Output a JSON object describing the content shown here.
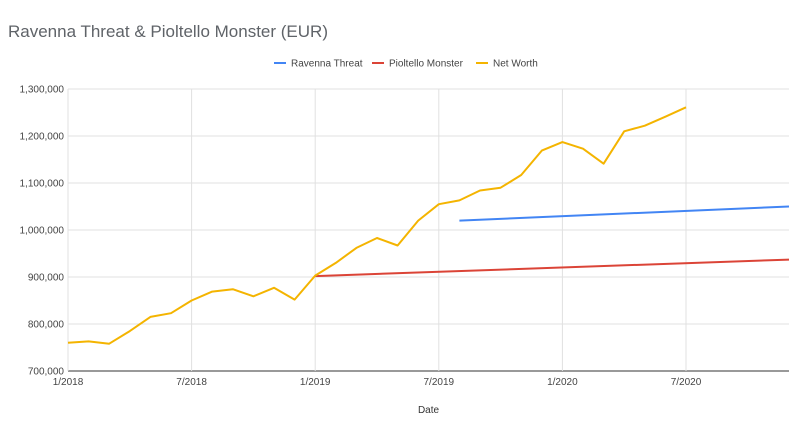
{
  "chart_data": {
    "type": "line",
    "title": "Ravenna Threat & Pioltello Monster (EUR)",
    "xlabel": "Date",
    "ylabel": "",
    "ylim": [
      700000,
      1300000
    ],
    "y_ticks": [
      "700,000",
      "800,000",
      "900,000",
      "1,000,000",
      "1,100,000",
      "1,200,000",
      "1,300,000"
    ],
    "x_range": [
      "2018-01",
      "2020-12"
    ],
    "x_ticks": [
      "1/2018",
      "7/2018",
      "1/2019",
      "7/2019",
      "1/2020",
      "7/2020"
    ],
    "grid": true,
    "legend_position": "top-center",
    "series": [
      {
        "name": "Ravenna Threat",
        "color": "#4285f4",
        "x": [
          "2019-08",
          "2020-12"
        ],
        "values": [
          1020000,
          1050000
        ]
      },
      {
        "name": "Pioltello Monster",
        "color": "#db4437",
        "x": [
          "2019-01",
          "2020-12"
        ],
        "values": [
          902000,
          937000
        ]
      },
      {
        "name": "Net Worth",
        "color": "#f4b400",
        "x": [
          "2018-01",
          "2018-02",
          "2018-03",
          "2018-04",
          "2018-05",
          "2018-06",
          "2018-07",
          "2018-08",
          "2018-09",
          "2018-10",
          "2018-11",
          "2018-12",
          "2019-01",
          "2019-02",
          "2019-03",
          "2019-04",
          "2019-05",
          "2019-06",
          "2019-07",
          "2019-08",
          "2019-09",
          "2019-10",
          "2019-11",
          "2019-12",
          "2020-01",
          "2020-02",
          "2020-03",
          "2020-04",
          "2020-05",
          "2020-06",
          "2020-07"
        ],
        "values": [
          760000,
          763000,
          758000,
          785000,
          815000,
          823000,
          850000,
          869000,
          874000,
          859000,
          877000,
          852000,
          903000,
          930000,
          962000,
          983000,
          967000,
          1020000,
          1055000,
          1063000,
          1084000,
          1090000,
          1117000,
          1169000,
          1187000,
          1173000,
          1141000,
          1210000,
          1222000,
          1241000,
          1261000
        ]
      }
    ]
  }
}
